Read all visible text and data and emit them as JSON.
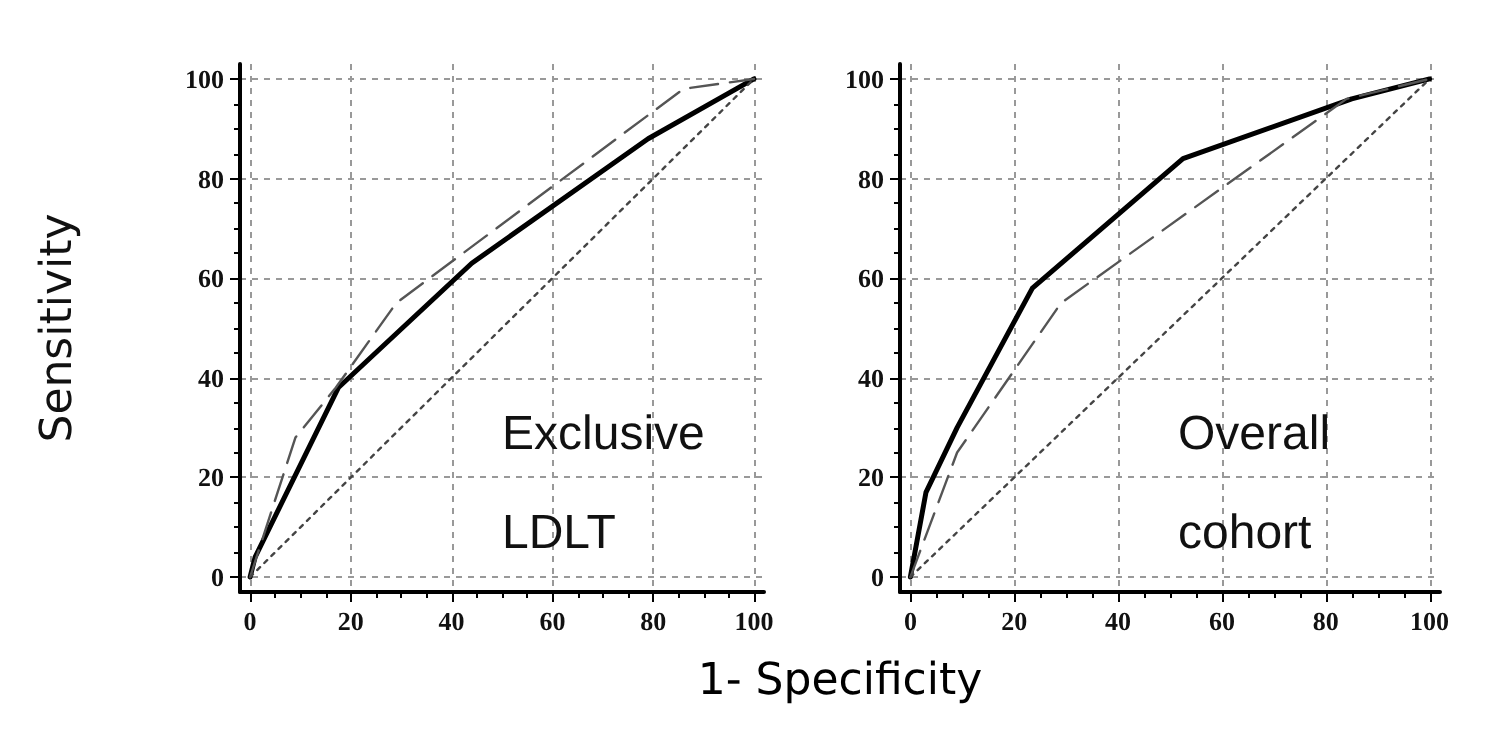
{
  "chart_data": [
    {
      "type": "line",
      "ylabel": "Sensitivity",
      "annotations": [
        "Exclusive LDLT"
      ],
      "xlim": [
        -2,
        102
      ],
      "ylim": [
        -3,
        103
      ],
      "xticks": [
        0,
        20,
        40,
        60,
        80,
        100
      ],
      "yticks": [
        0,
        20,
        40,
        60,
        80,
        100
      ],
      "grid": true,
      "marker": "none",
      "series": [
        {
          "color": "#000000",
          "line_style": "solid",
          "x": [
            0,
            1,
            17.5,
            44,
            79,
            100
          ],
          "values": [
            0,
            4,
            38,
            63,
            88,
            100
          ]
        },
        {
          "color": "#555555",
          "line_style": "dashed",
          "x": [
            0,
            9,
            17,
            29,
            86,
            100
          ],
          "values": [
            0,
            28,
            38,
            55,
            98,
            100
          ]
        },
        {
          "color": "#444444",
          "line_style": "dotted",
          "x": [
            0,
            100
          ],
          "values": [
            0,
            100
          ]
        }
      ]
    },
    {
      "type": "line",
      "xlabel": "1- Specificity",
      "annotations": [
        "Overall cohort"
      ],
      "xlim": [
        -2,
        102
      ],
      "ylim": [
        -3,
        103
      ],
      "xticks": [
        0,
        20,
        40,
        60,
        80,
        100
      ],
      "yticks": [
        0,
        20,
        40,
        60,
        80,
        100
      ],
      "grid": true,
      "marker": "none",
      "series": [
        {
          "color": "#000000",
          "line_style": "solid",
          "x": [
            0,
            3,
            9,
            23.5,
            52.5,
            85,
            100
          ],
          "values": [
            0,
            17,
            30,
            58,
            84,
            96,
            100
          ]
        },
        {
          "color": "#555555",
          "line_style": "dashed",
          "x": [
            0,
            9,
            29,
            84,
            100
          ],
          "values": [
            0,
            25,
            55,
            96,
            100
          ]
        },
        {
          "color": "#444444",
          "line_style": "dotted",
          "x": [
            0,
            100
          ],
          "values": [
            0,
            100
          ]
        }
      ]
    }
  ]
}
